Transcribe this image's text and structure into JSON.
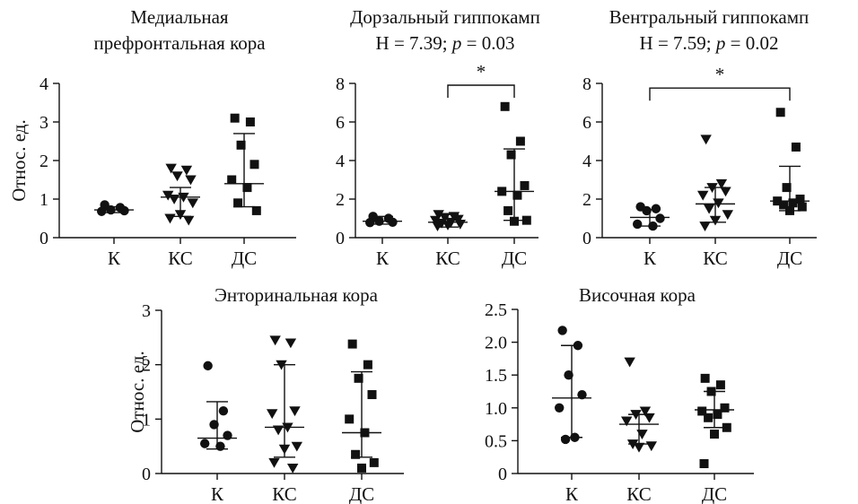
{
  "chart_data": [
    {
      "id": "p1",
      "type": "scatter",
      "title_lines": [
        "Медиальная",
        "префронтальная кора"
      ],
      "title_line2_stat": null,
      "ylabel": "Относ. ед.",
      "ylim": [
        0,
        4
      ],
      "yticks": [
        "0",
        "1",
        "2",
        "3",
        "4"
      ],
      "categories": [
        "К",
        "КС",
        "ДС"
      ],
      "markers": [
        "circle",
        "triangle-down",
        "square"
      ],
      "groups": [
        {
          "points": [
            0.85,
            0.78,
            0.72,
            0.7,
            0.68
          ],
          "median": 0.72,
          "low": 0.65,
          "high": 0.8
        },
        {
          "points": [
            1.8,
            1.75,
            1.6,
            1.5,
            1.1,
            1.05,
            1.0,
            0.9,
            0.6,
            0.5,
            0.45
          ],
          "median": 1.05,
          "low": 0.55,
          "high": 1.3
        },
        {
          "points": [
            3.1,
            3.0,
            2.4,
            1.9,
            1.5,
            1.3,
            0.9,
            0.7
          ],
          "median": 1.4,
          "low": 0.8,
          "high": 2.7
        }
      ],
      "significance": null
    },
    {
      "id": "p2",
      "type": "scatter",
      "title_lines": [
        "Дорзальный гиппокамп"
      ],
      "title_line2_stat": {
        "h": "H = 7.39; ",
        "p_letter": "p",
        "p_rest": " = 0.03"
      },
      "ylabel": "",
      "ylim": [
        0,
        8
      ],
      "yticks": [
        "0",
        "2",
        "4",
        "6",
        "8"
      ],
      "categories": [
        "К",
        "КС",
        "ДС"
      ],
      "markers": [
        "circle",
        "triangle-down",
        "square"
      ],
      "groups": [
        {
          "points": [
            1.1,
            1.0,
            0.85,
            0.8,
            0.78
          ],
          "median": 0.85,
          "low": 0.7,
          "high": 1.1
        },
        {
          "points": [
            1.2,
            1.1,
            1.05,
            0.95,
            0.9,
            0.8,
            0.75,
            0.7,
            0.65,
            0.6
          ],
          "median": 0.8,
          "low": 0.55,
          "high": 1.2
        },
        {
          "points": [
            6.8,
            5.0,
            4.3,
            2.7,
            2.4,
            2.2,
            1.4,
            0.9,
            0.85
          ],
          "median": 2.4,
          "low": 0.9,
          "high": 4.6
        }
      ],
      "significance": {
        "from": 1,
        "to": 2,
        "y": 8.0,
        "label": "*"
      }
    },
    {
      "id": "p3",
      "type": "scatter",
      "title_lines": [
        "Вентральный гиппокамп"
      ],
      "title_line2_stat": {
        "h": "H = 7.59; ",
        "p_letter": "p",
        "p_rest": " = 0.02"
      },
      "ylabel": "",
      "ylim": [
        0,
        8
      ],
      "yticks": [
        "0",
        "2",
        "4",
        "6",
        "8"
      ],
      "categories": [
        "К",
        "КС",
        "ДС"
      ],
      "markers": [
        "circle",
        "triangle-down",
        "square"
      ],
      "groups": [
        {
          "points": [
            1.6,
            1.5,
            1.4,
            1.0,
            0.7,
            0.6
          ],
          "median": 1.05,
          "low": 0.6,
          "high": 1.45
        },
        {
          "points": [
            5.1,
            2.8,
            2.6,
            2.4,
            2.2,
            1.8,
            1.5,
            1.2,
            0.9,
            0.6
          ],
          "median": 1.75,
          "low": 0.8,
          "high": 2.6
        },
        {
          "points": [
            6.5,
            4.7,
            2.6,
            2.0,
            1.9,
            1.8,
            1.7,
            1.6,
            1.4
          ],
          "median": 1.9,
          "low": 1.4,
          "high": 3.7
        }
      ],
      "significance": {
        "from": 0,
        "to": 2,
        "y": 7.85,
        "label": "*"
      }
    },
    {
      "id": "p4",
      "type": "scatter",
      "title_lines": [
        "Энторинальная кора"
      ],
      "title_line2_stat": null,
      "ylabel": "Относ. ед.",
      "ylim": [
        0,
        3
      ],
      "yticks": [
        "0",
        "1",
        "2",
        "3"
      ],
      "categories": [
        "К",
        "КС",
        "ДС"
      ],
      "markers": [
        "circle",
        "triangle-down",
        "square"
      ],
      "groups": [
        {
          "points": [
            1.98,
            1.15,
            0.9,
            0.7,
            0.55,
            0.5
          ],
          "median": 0.65,
          "low": 0.45,
          "high": 1.32
        },
        {
          "points": [
            2.45,
            2.4,
            2.0,
            1.15,
            1.1,
            0.85,
            0.8,
            0.5,
            0.45,
            0.2,
            0.1
          ],
          "median": 0.85,
          "low": 0.3,
          "high": 2.0
        },
        {
          "points": [
            2.38,
            2.0,
            1.75,
            1.45,
            1.0,
            0.75,
            0.35,
            0.2,
            0.1
          ],
          "median": 0.75,
          "low": 0.3,
          "high": 1.87
        }
      ],
      "significance": null
    },
    {
      "id": "p5",
      "type": "scatter",
      "title_lines": [
        "Височная кора"
      ],
      "title_line2_stat": null,
      "ylabel": "",
      "ylim": [
        0,
        2.5
      ],
      "yticks": [
        "0",
        "0.5",
        "1.0",
        "1.5",
        "2.0",
        "2.5"
      ],
      "categories": [
        "К",
        "КС",
        "ДС"
      ],
      "markers": [
        "circle",
        "triangle-down",
        "square"
      ],
      "groups": [
        {
          "points": [
            2.18,
            1.95,
            1.5,
            1.2,
            1.0,
            0.55,
            0.52
          ],
          "median": 1.15,
          "low": 0.55,
          "high": 1.95
        },
        {
          "points": [
            1.7,
            0.95,
            0.9,
            0.85,
            0.8,
            0.6,
            0.45,
            0.42,
            0.4
          ],
          "median": 0.75,
          "low": 0.45,
          "high": 0.9
        },
        {
          "points": [
            1.45,
            1.35,
            1.25,
            1.0,
            0.95,
            0.9,
            0.85,
            0.7,
            0.6,
            0.15
          ],
          "median": 0.97,
          "low": 0.7,
          "high": 1.25
        }
      ],
      "significance": null
    }
  ]
}
